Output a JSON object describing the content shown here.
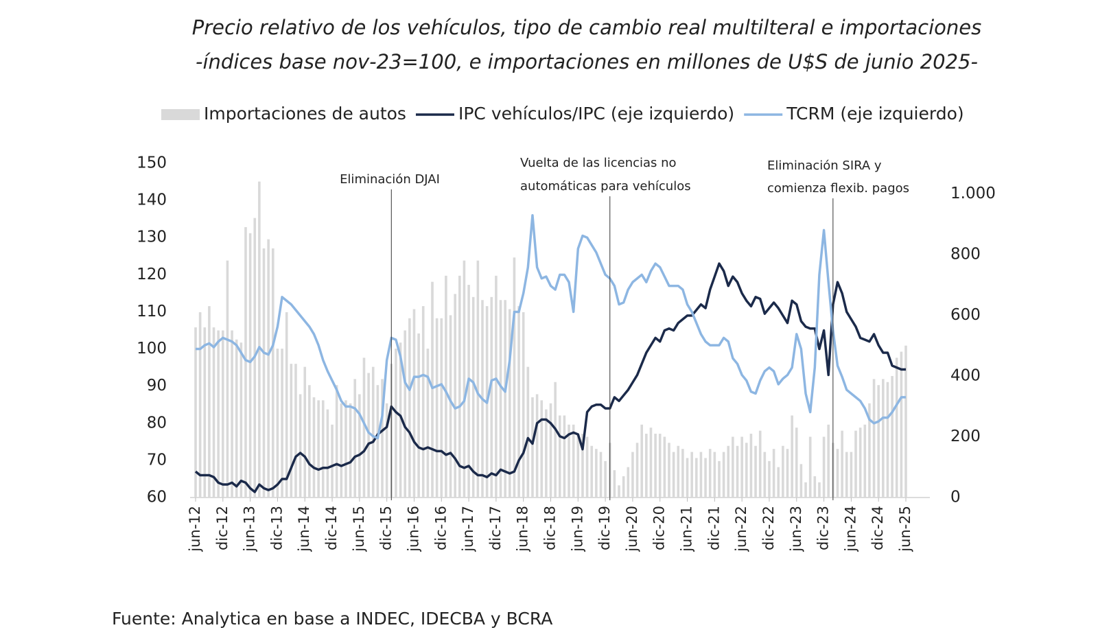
{
  "chart_data": {
    "type": "bar_line",
    "title": "Precio relativo de los vehículos, tipo de cambio real multilteral e importaciones",
    "subtitle": "-índices base nov-23=100, e importaciones en millones de U$S de junio 2025-",
    "source": "Fuente: Analytica en base a INDEC, IDECBA y BCRA",
    "categories": [
      "jun-12",
      null,
      null,
      null,
      null,
      null,
      "dic-12",
      null,
      null,
      null,
      null,
      null,
      "jun-13",
      null,
      null,
      null,
      null,
      null,
      "dic-13",
      null,
      null,
      null,
      null,
      null,
      "jun-14",
      null,
      null,
      null,
      null,
      null,
      "dic-14",
      null,
      null,
      null,
      null,
      null,
      "jun-15",
      null,
      null,
      null,
      null,
      null,
      "dic-15",
      null,
      null,
      null,
      null,
      null,
      "jun-16",
      null,
      null,
      null,
      null,
      null,
      "dic-16",
      null,
      null,
      null,
      null,
      null,
      "jun-17",
      null,
      null,
      null,
      null,
      null,
      "dic-17",
      null,
      null,
      null,
      null,
      null,
      "jun-18",
      null,
      null,
      null,
      null,
      null,
      "dic-18",
      null,
      null,
      null,
      null,
      null,
      "jun-19",
      null,
      null,
      null,
      null,
      null,
      "dic-19",
      null,
      null,
      null,
      null,
      null,
      "jun-20",
      null,
      null,
      null,
      null,
      null,
      "dic-20",
      null,
      null,
      null,
      null,
      null,
      "jun-21",
      null,
      null,
      null,
      null,
      null,
      "dic-21",
      null,
      null,
      null,
      null,
      null,
      "jun-22",
      null,
      null,
      null,
      null,
      null,
      "dic-22",
      null,
      null,
      null,
      null,
      null,
      "jun-23",
      null,
      null,
      null,
      null,
      null,
      "dic-23",
      null,
      null,
      null,
      null,
      null,
      "jun-24",
      null,
      null,
      null,
      null,
      null,
      "dic-24",
      null,
      null,
      null,
      null,
      null,
      "jun-25"
    ],
    "series": [
      {
        "name": "Importaciones de autos",
        "type": "bar",
        "axis": "y2",
        "color": "#d9d9d9",
        "values": [
          560,
          610,
          560,
          630,
          560,
          550,
          550,
          780,
          550,
          520,
          510,
          890,
          870,
          920,
          1040,
          820,
          850,
          820,
          490,
          490,
          610,
          440,
          440,
          340,
          430,
          370,
          330,
          320,
          320,
          290,
          240,
          370,
          310,
          320,
          310,
          390,
          340,
          460,
          410,
          430,
          370,
          390,
          310,
          440,
          490,
          510,
          550,
          590,
          620,
          540,
          630,
          490,
          710,
          590,
          590,
          730,
          600,
          670,
          730,
          780,
          700,
          660,
          780,
          650,
          630,
          660,
          730,
          650,
          650,
          620,
          790,
          630,
          610,
          430,
          330,
          340,
          320,
          290,
          310,
          380,
          270,
          270,
          240,
          240,
          210,
          210,
          200,
          170,
          160,
          150,
          120,
          180,
          90,
          40,
          70,
          100,
          150,
          180,
          240,
          210,
          230,
          210,
          210,
          200,
          180,
          150,
          170,
          160,
          130,
          150,
          130,
          150,
          130,
          160,
          150,
          120,
          150,
          170,
          200,
          170,
          200,
          180,
          210,
          170,
          220,
          150,
          120,
          160,
          100,
          170,
          160,
          270,
          230,
          110,
          50,
          200,
          70,
          50,
          200,
          240,
          180,
          160,
          220,
          150,
          150,
          220,
          230,
          240,
          310,
          390,
          370,
          390,
          380,
          400,
          460,
          480,
          500
        ]
      },
      {
        "name": "IPC vehículos/IPC (eje izquierdo)",
        "type": "line",
        "color": "#1b2a4a",
        "values": [
          67,
          66,
          66,
          66,
          65.5,
          64,
          63.5,
          63.5,
          64,
          63,
          64.5,
          64,
          62.5,
          61.5,
          63.5,
          62.5,
          62,
          62.5,
          63.5,
          65,
          65,
          68,
          71,
          72,
          71,
          69,
          68,
          67.5,
          68,
          68,
          68.5,
          69,
          68.5,
          69,
          69.5,
          71,
          71.5,
          72.5,
          74.5,
          75,
          77,
          78,
          79,
          84.5,
          83,
          82,
          79,
          77.5,
          75,
          73.5,
          73,
          73.5,
          73,
          72.5,
          72.5,
          71.5,
          72,
          70.5,
          68.5,
          68,
          68.5,
          67,
          66,
          66,
          65.5,
          66.5,
          66,
          67.5,
          67,
          66.5,
          67,
          70,
          72,
          76,
          74.5,
          80,
          81,
          81,
          80,
          78.5,
          76.5,
          76,
          77,
          77.5,
          77,
          73,
          83,
          84.5,
          85,
          85,
          84,
          84,
          87,
          86,
          87.5,
          89,
          91,
          93,
          96,
          99,
          101,
          103,
          102,
          105,
          105.5,
          105,
          107,
          108,
          109,
          109,
          110.5,
          112,
          111,
          116,
          119.5,
          123,
          121,
          117,
          119.5,
          118,
          115,
          113,
          111.5,
          114,
          113.5,
          109.5,
          111,
          112.5,
          111,
          109,
          107,
          113,
          112,
          107.5,
          106,
          105.5,
          105.5,
          100,
          105,
          93,
          112,
          118,
          115,
          110,
          108,
          106,
          103,
          102.5,
          102,
          104,
          101,
          99,
          99,
          95.5,
          95,
          94.5,
          94.5
        ]
      },
      {
        "name": "TCRM (eje izquierdo)",
        "type": "line",
        "color": "#8db6e2",
        "values": [
          100,
          100,
          101,
          101.5,
          100.5,
          102,
          103,
          102.5,
          102,
          101,
          99,
          97,
          96.5,
          98,
          100.5,
          99,
          98.5,
          101,
          106,
          114,
          113,
          112,
          110.5,
          109,
          107.5,
          106,
          104,
          101,
          97,
          94,
          91.5,
          89,
          86,
          84.5,
          84.5,
          84,
          82.5,
          80,
          77.5,
          76.5,
          76,
          82,
          97,
          103,
          102.5,
          98,
          91,
          89,
          92.5,
          92.5,
          93,
          92.5,
          89.5,
          90,
          90.5,
          88.5,
          86,
          84,
          84.5,
          86,
          92,
          91,
          88,
          86.5,
          85.5,
          91.5,
          92,
          90,
          88.5,
          97,
          110,
          110,
          115,
          122,
          136,
          122,
          119,
          119.5,
          117,
          116,
          120,
          120,
          118,
          110,
          127,
          130.5,
          130,
          128,
          126,
          123,
          120,
          119,
          117,
          112,
          112.5,
          116,
          118,
          119,
          120,
          118,
          121,
          123,
          122,
          119.5,
          117,
          117,
          117,
          116,
          112,
          110,
          107,
          104,
          102,
          101,
          101,
          101,
          103,
          102,
          97.5,
          96,
          93,
          91.5,
          88.5,
          88,
          91.5,
          94,
          95,
          94,
          90.5,
          92,
          93,
          95,
          104,
          100,
          88,
          83,
          95,
          120,
          132,
          118,
          105,
          95.5,
          92.5,
          89,
          88,
          87,
          86,
          84,
          81,
          80,
          80.5,
          81.5,
          81.5,
          83,
          85,
          87,
          87
        ]
      }
    ],
    "ylim": [
      60,
      150
    ],
    "yticks": [
      60,
      70,
      80,
      90,
      100,
      110,
      120,
      130,
      140,
      150
    ],
    "y2lim": [
      0,
      1100
    ],
    "y2ticks": [
      0,
      200,
      400,
      600,
      800,
      {
        "value": 1000,
        "label": "1.000"
      }
    ],
    "annotations": [
      {
        "text": [
          "Eliminación DJAI"
        ]
      },
      {
        "text": [
          "Vuelta de las licencias no",
          "automáticas para vehículos"
        ]
      },
      {
        "text": [
          "Eliminación SIRA y",
          "comienza flexib. pagos"
        ]
      }
    ]
  }
}
